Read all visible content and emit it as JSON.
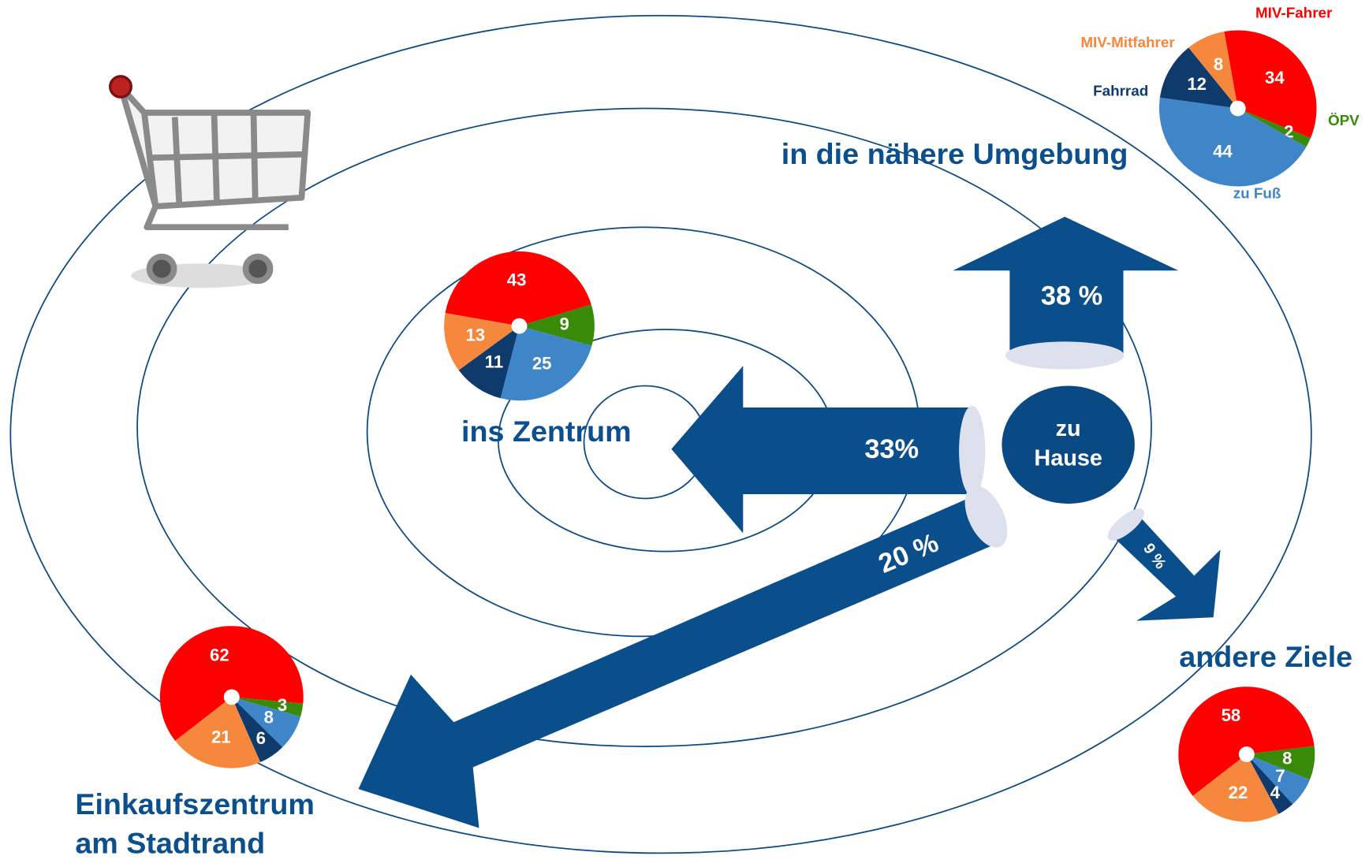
{
  "legend": [
    {
      "name": "MIV-Fahrer",
      "color": "#ff0000"
    },
    {
      "name": "ÖPV",
      "color": "#3a8a0a"
    },
    {
      "name": "zu Fuß",
      "color": "#3f86c8"
    },
    {
      "name": "Fahrrad",
      "color": "#0f3a6c"
    },
    {
      "name": "MIV-Mitfahrer",
      "color": "#f5883c"
    }
  ],
  "home": [
    "zu",
    "Hause"
  ],
  "destinations": [
    {
      "title": [
        "in die nähere Umgebung"
      ],
      "values": [
        34,
        2,
        44,
        12,
        8
      ],
      "arrow_label": "38 %"
    },
    {
      "title": [
        "ins Zentrum"
      ],
      "values": [
        43,
        9,
        25,
        11,
        13
      ],
      "arrow_label": "33%"
    },
    {
      "title": [
        "Einkaufszentrum",
        "am Stadtrand"
      ],
      "values": [
        62,
        3,
        8,
        6,
        21
      ],
      "arrow_label": "20 %"
    },
    {
      "title": [
        "andere Ziele"
      ],
      "values": [
        58,
        8,
        7,
        4,
        22
      ],
      "arrow_label": "9 %"
    }
  ]
}
